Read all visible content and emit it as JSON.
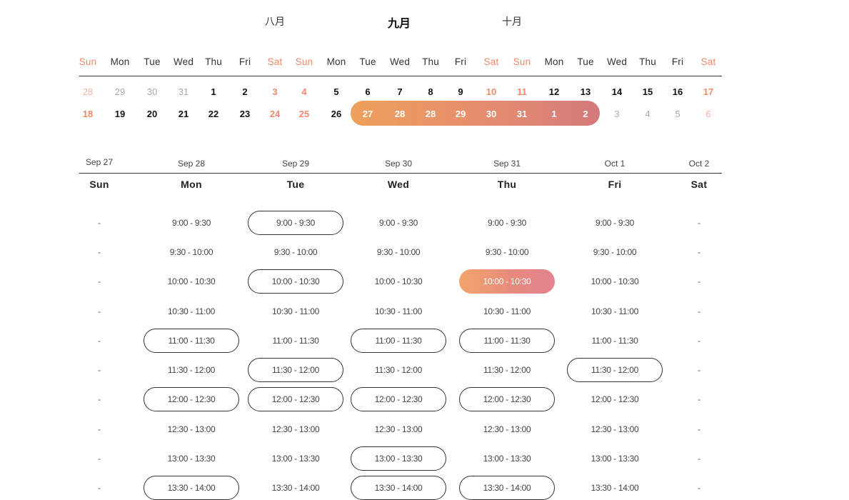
{
  "months": [
    {
      "label": "八月",
      "active": false
    },
    {
      "label": "九月",
      "active": true
    },
    {
      "label": "十月",
      "active": false
    }
  ],
  "weekdays": [
    "Sun",
    "Mon",
    "Tue",
    "Wed",
    "Thu",
    "Fri",
    "Sat",
    "Sun",
    "Mon",
    "Tue",
    "Wed",
    "Thu",
    "Fri",
    "Sat",
    "Sun",
    "Mon",
    "Tue",
    "Wed",
    "Thu",
    "Fri",
    "Sat"
  ],
  "calendar_rows": [
    [
      "28",
      "29",
      "30",
      "31",
      "1",
      "2",
      "3",
      "4",
      "5",
      "6",
      "7",
      "8",
      "9",
      "10",
      "11",
      "12",
      "13",
      "14",
      "15",
      "16",
      "17"
    ],
    [
      "18",
      "19",
      "20",
      "21",
      "22",
      "23",
      "24",
      "25",
      "26",
      "27",
      "28",
      "28",
      "29",
      "30",
      "31",
      "1",
      "2",
      "3",
      "4",
      "5",
      "6"
    ]
  ],
  "selected_range": {
    "start_index": 9,
    "end_index": 16
  },
  "days": [
    {
      "date": "Sep 27",
      "name": "Sun"
    },
    {
      "date": "Sep 28",
      "name": "Mon"
    },
    {
      "date": "Sep 29",
      "name": "Tue"
    },
    {
      "date": "Sep 30",
      "name": "Wed"
    },
    {
      "date": "Sep 31",
      "name": "Thu"
    },
    {
      "date": "Oct 1",
      "name": "Fri"
    },
    {
      "date": "Oct 2",
      "name": "Sat"
    }
  ],
  "time_slots": [
    "9:00 - 9:30",
    "9:30 - 10:00",
    "10:00 - 10:30",
    "10:30 - 11:00",
    "11:00 - 11:30",
    "11:30 - 12:00",
    "12:00 - 12:30",
    "12:30 - 13:00",
    "13:00 - 13:30",
    "13:30 - 14:00"
  ],
  "unavailable_text": "-",
  "slot_states": [
    [
      "none",
      "none",
      "none",
      "none",
      "none",
      "none",
      "none",
      "none",
      "none",
      "none"
    ],
    [
      "plain",
      "plain",
      "plain",
      "plain",
      "outline",
      "plain",
      "outline",
      "plain",
      "plain",
      "outline"
    ],
    [
      "outline",
      "plain",
      "outline",
      "plain",
      "plain",
      "outline",
      "outline",
      "plain",
      "plain",
      "plain"
    ],
    [
      "plain",
      "plain",
      "plain",
      "plain",
      "outline",
      "plain",
      "outline",
      "plain",
      "outline",
      "outline"
    ],
    [
      "plain",
      "plain",
      "selected",
      "plain",
      "outline",
      "plain",
      "outline",
      "plain",
      "plain",
      "outline"
    ],
    [
      "plain",
      "plain",
      "plain",
      "plain",
      "plain",
      "outline",
      "plain",
      "plain",
      "plain",
      "plain"
    ],
    [
      "none",
      "none",
      "none",
      "none",
      "none",
      "none",
      "none",
      "none",
      "none",
      "none"
    ]
  ],
  "colors": {
    "weekend": "#f08a6e",
    "range_start": "#eda05a",
    "range_end": "#d47a7c",
    "selected_slot": "#f1a56a"
  }
}
